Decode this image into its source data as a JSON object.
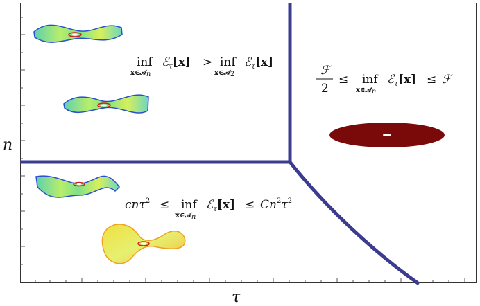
{
  "axes": {
    "x_label": "τ",
    "y_label": "n"
  },
  "regions": {
    "top_left": {
      "inf1": "inf",
      "sub1": "x∈𝒜",
      "sub1_index": "n",
      "energy1": "ℰ",
      "energy1_sub": "τ",
      "arg1": "[x]",
      "relation": ">",
      "inf2": "inf",
      "sub2": "x∈𝒜",
      "sub2_index": "2",
      "energy2": "ℰ",
      "energy2_sub": "τ",
      "arg2": "[x]"
    },
    "right": {
      "frac_num": "ℱ",
      "frac_den": "2",
      "le1": "≤",
      "inf": "inf",
      "sub": "x∈𝒜",
      "sub_index": "n",
      "energy": "ℰ",
      "energy_sub": "τ",
      "arg": "[x]",
      "le2": "≤",
      "bound": "ℱ"
    },
    "bottom_left": {
      "lower": "cnτ",
      "lower_exp": "2",
      "le1": "≤",
      "inf": "inf",
      "sub": "x∈𝒜",
      "sub_index": "n",
      "energy": "ℰ",
      "energy_sub": "τ",
      "arg": "[x]",
      "le2": "≤",
      "upper_a": "Cn",
      "upper_exp1": "2",
      "upper_b": "τ",
      "upper_exp2": "2"
    }
  },
  "colors": {
    "boundary": "#3b3b8f",
    "disk": "#7a0a0a",
    "surface_green": "#7fe08a",
    "surface_yellow": "#e8f050",
    "surface_blue": "#2a4fd0"
  }
}
